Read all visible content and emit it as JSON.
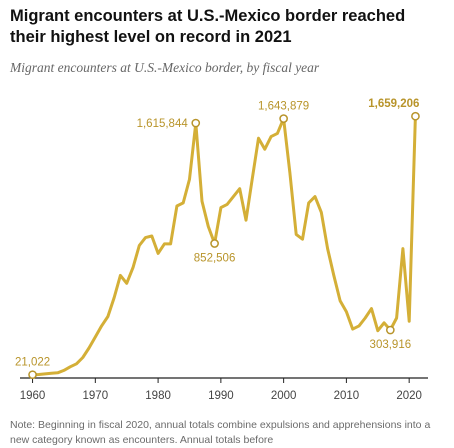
{
  "title": "Migrant encounters at U.S.-Mexico border reached their highest level on record in 2021",
  "subtitle": "Migrant encounters at U.S.-Mexico border, by fiscal year",
  "note": "Note: Beginning in fiscal 2020, annual totals combine expulsions and apprehensions into a new category known as encounters. Annual totals before",
  "colors": {
    "line": "#d4af37",
    "label": "#b8942a",
    "axis": "#222222",
    "tick_text": "#444444"
  },
  "chart_data": {
    "type": "line",
    "x": [
      1960,
      1961,
      1962,
      1963,
      1964,
      1965,
      1966,
      1967,
      1968,
      1969,
      1970,
      1971,
      1972,
      1973,
      1974,
      1975,
      1976,
      1977,
      1978,
      1979,
      1980,
      1981,
      1982,
      1983,
      1984,
      1985,
      1986,
      1987,
      1988,
      1989,
      1990,
      1991,
      1992,
      1993,
      1994,
      1995,
      1996,
      1997,
      1998,
      1999,
      2000,
      2001,
      2002,
      2003,
      2004,
      2005,
      2006,
      2007,
      2008,
      2009,
      2010,
      2011,
      2012,
      2013,
      2014,
      2015,
      2016,
      2017,
      2018,
      2019,
      2020,
      2021
    ],
    "y": [
      21022,
      22000,
      26000,
      30000,
      33000,
      48000,
      71000,
      90000,
      130000,
      190000,
      260000,
      330000,
      390000,
      510000,
      650000,
      600000,
      700000,
      840000,
      890000,
      900000,
      790000,
      850000,
      850000,
      1090000,
      1110000,
      1260000,
      1615844,
      1120000,
      960000,
      852506,
      1080000,
      1100000,
      1150000,
      1200000,
      1000000,
      1260000,
      1520000,
      1450000,
      1530000,
      1550000,
      1643879,
      1300000,
      910000,
      880000,
      1110000,
      1150000,
      1050000,
      820000,
      650000,
      490000,
      420000,
      310000,
      330000,
      380000,
      440000,
      300000,
      350000,
      303916,
      380000,
      820000,
      360000,
      1659206
    ],
    "xlim": [
      1958,
      2023
    ],
    "ylim": [
      0,
      1800000
    ],
    "x_ticks": [
      1960,
      1970,
      1980,
      1990,
      2000,
      2010,
      2020
    ],
    "labeled_points": [
      {
        "x": 1960,
        "y": 21022,
        "label": "21,022",
        "pos": "above",
        "bold": false
      },
      {
        "x": 1986,
        "y": 1615844,
        "label": "1,615,844",
        "pos": "left",
        "bold": false
      },
      {
        "x": 1989,
        "y": 852506,
        "label": "852,506",
        "pos": "below",
        "bold": false
      },
      {
        "x": 2000,
        "y": 1643879,
        "label": "1,643,879",
        "pos": "above",
        "bold": false
      },
      {
        "x": 2017,
        "y": 303916,
        "label": "303,916",
        "pos": "below",
        "bold": false
      },
      {
        "x": 2021,
        "y": 1659206,
        "label": "1,659,206",
        "pos": "above-left",
        "bold": true
      }
    ],
    "grid": false
  }
}
